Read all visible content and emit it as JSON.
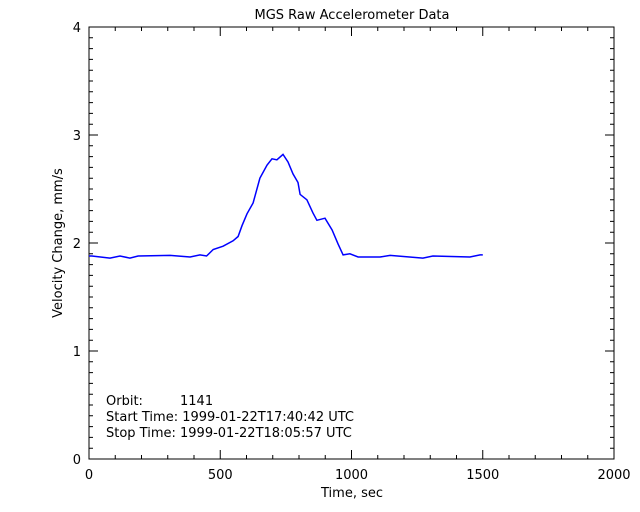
{
  "chart_data": {
    "type": "line",
    "title": "MGS Raw Accelerometer Data",
    "xlabel": "Time, sec",
    "ylabel": "Velocity Change, mm/s",
    "xlim": [
      0,
      2000
    ],
    "ylim": [
      0,
      4
    ],
    "xticks": [
      0,
      500,
      1000,
      1500,
      2000
    ],
    "yticks": [
      0,
      1,
      2,
      3,
      4
    ],
    "grid": false,
    "line_color": "#0000ff",
    "series": [
      {
        "x": [
          0,
          11,
          80,
          118,
          156,
          187,
          309,
          385,
          423,
          448,
          473,
          511,
          549,
          568,
          583,
          602,
          625,
          651,
          678,
          697,
          716,
          739,
          758,
          777,
          796,
          804,
          830,
          853,
          868,
          899,
          926,
          949,
          968,
          994,
          1025,
          1109,
          1147,
          1272,
          1310,
          1451,
          1490,
          1500
        ],
        "y": [
          1.88,
          1.88,
          1.86,
          1.88,
          1.86,
          1.88,
          1.885,
          1.87,
          1.89,
          1.88,
          1.94,
          1.97,
          2.02,
          2.06,
          2.16,
          2.27,
          2.37,
          2.6,
          2.72,
          2.78,
          2.77,
          2.82,
          2.75,
          2.64,
          2.56,
          2.45,
          2.4,
          2.28,
          2.21,
          2.23,
          2.12,
          1.99,
          1.89,
          1.9,
          1.87,
          1.87,
          1.885,
          1.86,
          1.88,
          1.87,
          1.89,
          1.89
        ]
      }
    ],
    "annotations": {
      "orbit_label": "Orbit:",
      "orbit_value": "1141",
      "start": "Start Time: 1999-01-22T17:40:42 UTC",
      "stop": "Stop Time: 1999-01-22T18:05:57 UTC"
    }
  }
}
